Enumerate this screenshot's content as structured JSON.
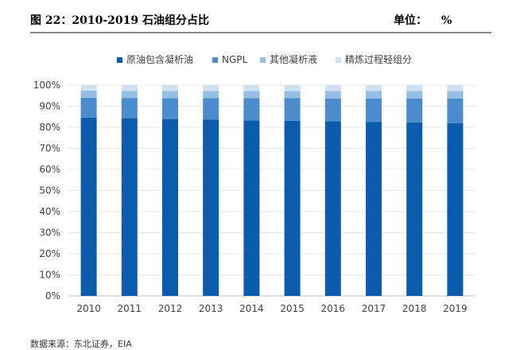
{
  "header": {
    "title": "图 22：2010-2019 石油组分占比",
    "unit_label": "单位：",
    "unit_symbol": "%"
  },
  "footer": {
    "source": "数据来源：东北证券，EIA"
  },
  "colors": {
    "crude": "#0b5cad",
    "ngpl": "#4a8ccc",
    "other": "#96bde3",
    "refinery": "#cfe1f3",
    "grid": "#e6e6e6",
    "axis": "#bfbfbf"
  },
  "chart_data": {
    "type": "bar",
    "stacked": true,
    "categories": [
      "2010",
      "2011",
      "2012",
      "2013",
      "2014",
      "2015",
      "2016",
      "2017",
      "2018",
      "2019"
    ],
    "series": [
      {
        "name": "原油包含凝析油",
        "color": "#0b5cad",
        "values": [
          0.846,
          0.843,
          0.839,
          0.836,
          0.833,
          0.831,
          0.829,
          0.826,
          0.823,
          0.82
        ]
      },
      {
        "name": "NGPL",
        "color": "#4a8ccc",
        "values": [
          0.094,
          0.096,
          0.099,
          0.102,
          0.105,
          0.107,
          0.108,
          0.11,
          0.113,
          0.116
        ]
      },
      {
        "name": "其他凝析液",
        "color": "#96bde3",
        "values": [
          0.034,
          0.034,
          0.034,
          0.034,
          0.034,
          0.034,
          0.035,
          0.036,
          0.036,
          0.036
        ]
      },
      {
        "name": "精炼过程轻组分",
        "color": "#cfe1f3",
        "values": [
          0.026,
          0.027,
          0.028,
          0.028,
          0.028,
          0.028,
          0.028,
          0.028,
          0.028,
          0.028
        ]
      }
    ],
    "yticks": [
      "0%",
      "10%",
      "20%",
      "30%",
      "40%",
      "50%",
      "60%",
      "70%",
      "80%",
      "90%",
      "100%"
    ],
    "ylim": [
      0,
      1
    ],
    "grid": true,
    "legend": "top-center"
  }
}
